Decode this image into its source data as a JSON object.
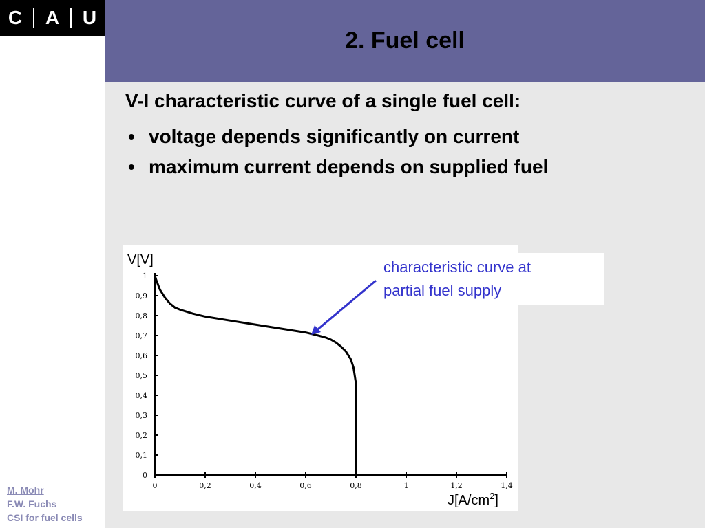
{
  "logo": {
    "letters": [
      "C",
      "A",
      "U"
    ]
  },
  "header": {
    "title": "2. Fuel cell"
  },
  "content": {
    "subtitle": "V-I characteristic curve of a single fuel cell:",
    "bullets": [
      "voltage depends significantly on current",
      "maximum current depends on supplied fuel"
    ],
    "bullet_symbol": "•"
  },
  "annotation": {
    "line1": "characteristic curve at",
    "line2": "partial fuel supply"
  },
  "footer": {
    "author1": "M. Mohr",
    "author2": "F.W. Fuchs",
    "course": "CSI for fuel cells"
  },
  "colors": {
    "header_bg": "#646499",
    "annotation": "#3333cc",
    "main_bg": "#e8e8e8"
  },
  "chart_data": {
    "type": "line",
    "ylabel": "V[V]",
    "xlabel_base": "J[A/cm",
    "xlabel_sup": "2",
    "xlabel_end": "]",
    "xlim": [
      0,
      1.4
    ],
    "ylim": [
      0,
      1
    ],
    "x_ticks": [
      "0",
      "0,2",
      "0,4",
      "0,6",
      "0,8",
      "1",
      "1,2",
      "1,4"
    ],
    "y_ticks": [
      "0",
      "0,1",
      "0,2",
      "0,3",
      "0,4",
      "0,5",
      "0,6",
      "0,7",
      "0,8",
      "0,9",
      "1"
    ],
    "series": [
      {
        "x": [
          0,
          0.005,
          0.02,
          0.04,
          0.06,
          0.08,
          0.1,
          0.15,
          0.2,
          0.3,
          0.4,
          0.5,
          0.6,
          0.65,
          0.68,
          0.7,
          0.72,
          0.74,
          0.76,
          0.78,
          0.79,
          0.8,
          0.8,
          0.8
        ],
        "y": [
          1.0,
          0.98,
          0.93,
          0.89,
          0.86,
          0.84,
          0.83,
          0.81,
          0.795,
          0.775,
          0.755,
          0.735,
          0.715,
          0.7,
          0.69,
          0.68,
          0.665,
          0.645,
          0.62,
          0.58,
          0.54,
          0.46,
          0.2,
          0
        ]
      }
    ]
  }
}
